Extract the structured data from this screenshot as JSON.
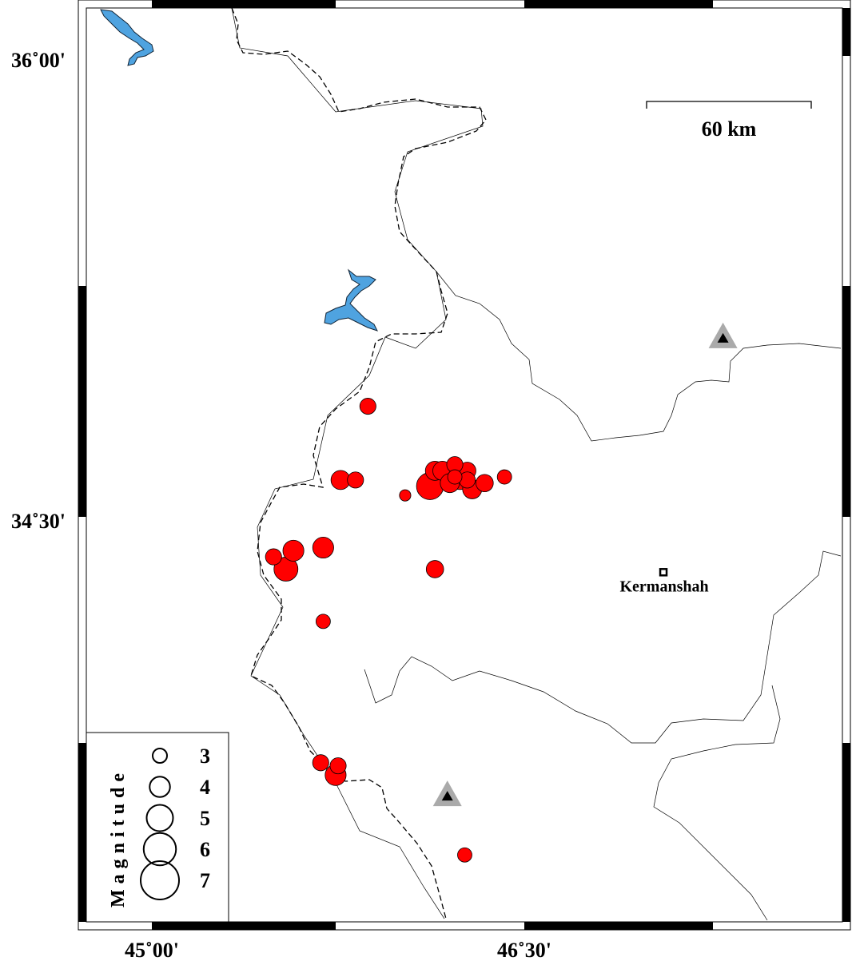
{
  "map": {
    "lon_range": [
      44.7,
      47.8
    ],
    "lat_range": [
      33.0,
      36.2
    ],
    "x_ticks": [
      {
        "value": 45.0,
        "label": "45˚00'"
      },
      {
        "value": 46.5,
        "label": "46˚30'"
      }
    ],
    "y_ticks": [
      {
        "value": 36.0,
        "label": "36˚00'"
      },
      {
        "value": 34.5,
        "label": "34˚30'"
      }
    ],
    "scale_bar": {
      "label": "60 km",
      "length_km": 60
    },
    "city": {
      "name": "Kermanshah",
      "lon": 47.06,
      "lat": 34.32
    },
    "stations": [
      {
        "lon": 47.3,
        "lat": 35.08
      },
      {
        "lon": 46.19,
        "lat": 33.59
      }
    ],
    "colors": {
      "event": "#ff0000",
      "water": "#4fa3e0",
      "station_halo": "#aaaaaa",
      "station": "#000000"
    }
  },
  "legend": {
    "title": "Magnitude",
    "entries": [
      {
        "label": "3",
        "mag": 3
      },
      {
        "label": "4",
        "mag": 4
      },
      {
        "label": "5",
        "mag": 5
      },
      {
        "label": "6",
        "mag": 6
      },
      {
        "label": "7",
        "mag": 7
      }
    ]
  },
  "events": [
    {
      "lon": 45.87,
      "lat": 34.86,
      "mag": 3.3
    },
    {
      "lon": 45.76,
      "lat": 34.62,
      "mag": 3.8
    },
    {
      "lon": 45.82,
      "lat": 34.62,
      "mag": 3.3
    },
    {
      "lon": 46.02,
      "lat": 34.57,
      "mag": 2.5
    },
    {
      "lon": 46.14,
      "lat": 34.33,
      "mag": 3.5
    },
    {
      "lon": 45.69,
      "lat": 34.4,
      "mag": 4.1
    },
    {
      "lon": 45.57,
      "lat": 34.39,
      "mag": 4.1
    },
    {
      "lon": 45.54,
      "lat": 34.33,
      "mag": 4.6
    },
    {
      "lon": 45.49,
      "lat": 34.37,
      "mag": 3.3
    },
    {
      "lon": 45.69,
      "lat": 34.16,
      "mag": 3.0
    },
    {
      "lon": 45.68,
      "lat": 33.7,
      "mag": 3.3
    },
    {
      "lon": 45.75,
      "lat": 33.69,
      "mag": 3.3
    },
    {
      "lon": 45.74,
      "lat": 33.66,
      "mag": 4.1
    },
    {
      "lon": 46.26,
      "lat": 33.4,
      "mag": 3.0
    },
    {
      "lon": 46.14,
      "lat": 34.65,
      "mag": 3.8
    },
    {
      "lon": 46.17,
      "lat": 34.65,
      "mag": 3.8
    },
    {
      "lon": 46.22,
      "lat": 34.67,
      "mag": 3.3
    },
    {
      "lon": 46.27,
      "lat": 34.65,
      "mag": 3.5
    },
    {
      "lon": 46.24,
      "lat": 34.62,
      "mag": 3.8
    },
    {
      "lon": 46.2,
      "lat": 34.61,
      "mag": 3.8
    },
    {
      "lon": 46.29,
      "lat": 34.59,
      "mag": 3.8
    },
    {
      "lon": 46.34,
      "lat": 34.61,
      "mag": 3.5
    },
    {
      "lon": 46.42,
      "lat": 34.63,
      "mag": 3.0
    },
    {
      "lon": 46.22,
      "lat": 34.63,
      "mag": 3.0
    },
    {
      "lon": 46.27,
      "lat": 34.62,
      "mag": 3.3
    },
    {
      "lon": 46.12,
      "lat": 34.6,
      "mag": 5.1
    }
  ]
}
